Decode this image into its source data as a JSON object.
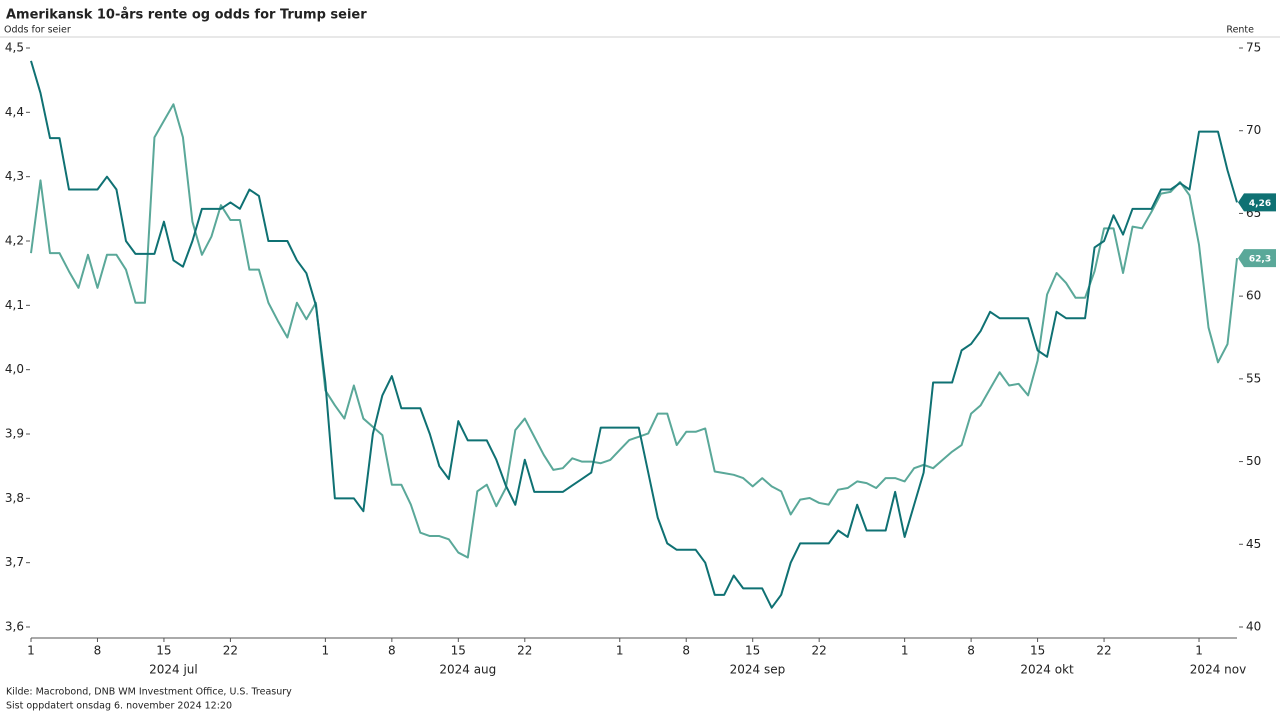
{
  "chart_data": {
    "type": "line",
    "title": "Amerikansk 10-års rente og odds for Trump seier",
    "ylabel": "Odds for seier",
    "y2label": "Rente",
    "source": "Kilde: Macrobond, DNB WM Investment Office, U.S. Treasury",
    "updated": "Sist oppdatert onsdag 6. november 2024 12:20",
    "xlim": [
      "2024-07-01",
      "2024-11-05"
    ],
    "ylim": [
      3.6,
      4.5
    ],
    "yticks": [
      {
        "value": 3.6,
        "label": "3,6"
      },
      {
        "value": 3.7,
        "label": "3,7"
      },
      {
        "value": 3.8,
        "label": "3,8"
      },
      {
        "value": 3.9,
        "label": "3,9"
      },
      {
        "value": 4.0,
        "label": "4,0"
      },
      {
        "value": 4.1,
        "label": "4,1"
      },
      {
        "value": 4.2,
        "label": "4,2"
      },
      {
        "value": 4.3,
        "label": "4,3"
      },
      {
        "value": 4.4,
        "label": "4,4"
      },
      {
        "value": 4.5,
        "label": "4,5"
      }
    ],
    "y2lim": [
      40,
      75
    ],
    "y2ticks": [
      40,
      45,
      50,
      55,
      60,
      65,
      70,
      75
    ],
    "xticks": [
      {
        "value": "2024-07-01",
        "label": "1"
      },
      {
        "value": "2024-07-08",
        "label": "8"
      },
      {
        "value": "2024-07-15",
        "label": "15"
      },
      {
        "value": "2024-07-22",
        "label": "22"
      },
      {
        "value": "2024-08-01",
        "label": "1"
      },
      {
        "value": "2024-08-08",
        "label": "8"
      },
      {
        "value": "2024-08-15",
        "label": "15"
      },
      {
        "value": "2024-08-22",
        "label": "22"
      },
      {
        "value": "2024-09-01",
        "label": "1"
      },
      {
        "value": "2024-09-08",
        "label": "8"
      },
      {
        "value": "2024-09-15",
        "label": "15"
      },
      {
        "value": "2024-09-22",
        "label": "22"
      },
      {
        "value": "2024-10-01",
        "label": "1"
      },
      {
        "value": "2024-10-08",
        "label": "8"
      },
      {
        "value": "2024-10-15",
        "label": "15"
      },
      {
        "value": "2024-10-22",
        "label": "22"
      },
      {
        "value": "2024-11-01",
        "label": "1"
      }
    ],
    "month_labels": [
      {
        "value": "2024-07",
        "label": "2024 jul"
      },
      {
        "value": "2024-08",
        "label": "2024 aug"
      },
      {
        "value": "2024-09",
        "label": "2024 sep"
      },
      {
        "value": "2024-10",
        "label": "2024 okt"
      },
      {
        "value": "2024-11",
        "label": "2024 nov"
      }
    ],
    "x": [
      "2024-07-01",
      "2024-07-02",
      "2024-07-03",
      "2024-07-04",
      "2024-07-05",
      "2024-07-06",
      "2024-07-07",
      "2024-07-08",
      "2024-07-09",
      "2024-07-10",
      "2024-07-11",
      "2024-07-12",
      "2024-07-13",
      "2024-07-14",
      "2024-07-15",
      "2024-07-16",
      "2024-07-17",
      "2024-07-18",
      "2024-07-19",
      "2024-07-20",
      "2024-07-21",
      "2024-07-22",
      "2024-07-23",
      "2024-07-24",
      "2024-07-25",
      "2024-07-26",
      "2024-07-27",
      "2024-07-28",
      "2024-07-29",
      "2024-07-30",
      "2024-07-31",
      "2024-08-01",
      "2024-08-02",
      "2024-08-03",
      "2024-08-04",
      "2024-08-05",
      "2024-08-06",
      "2024-08-07",
      "2024-08-08",
      "2024-08-09",
      "2024-08-10",
      "2024-08-11",
      "2024-08-12",
      "2024-08-13",
      "2024-08-14",
      "2024-08-15",
      "2024-08-16",
      "2024-08-17",
      "2024-08-18",
      "2024-08-19",
      "2024-08-20",
      "2024-08-21",
      "2024-08-22",
      "2024-08-23",
      "2024-08-24",
      "2024-08-25",
      "2024-08-26",
      "2024-08-27",
      "2024-08-28",
      "2024-08-29",
      "2024-08-30",
      "2024-08-31",
      "2024-09-01",
      "2024-09-02",
      "2024-09-03",
      "2024-09-04",
      "2024-09-05",
      "2024-09-06",
      "2024-09-07",
      "2024-09-08",
      "2024-09-09",
      "2024-09-10",
      "2024-09-11",
      "2024-09-12",
      "2024-09-13",
      "2024-09-14",
      "2024-09-15",
      "2024-09-16",
      "2024-09-17",
      "2024-09-18",
      "2024-09-19",
      "2024-09-20",
      "2024-09-21",
      "2024-09-22",
      "2024-09-23",
      "2024-09-24",
      "2024-09-25",
      "2024-09-26",
      "2024-09-27",
      "2024-09-28",
      "2024-09-29",
      "2024-09-30",
      "2024-10-01",
      "2024-10-02",
      "2024-10-03",
      "2024-10-04",
      "2024-10-05",
      "2024-10-06",
      "2024-10-07",
      "2024-10-08",
      "2024-10-09",
      "2024-10-10",
      "2024-10-11",
      "2024-10-12",
      "2024-10-13",
      "2024-10-14",
      "2024-10-15",
      "2024-10-16",
      "2024-10-17",
      "2024-10-18",
      "2024-10-19",
      "2024-10-20",
      "2024-10-21",
      "2024-10-22",
      "2024-10-23",
      "2024-10-24",
      "2024-10-25",
      "2024-10-26",
      "2024-10-27",
      "2024-10-28",
      "2024-10-29",
      "2024-10-30",
      "2024-10-31",
      "2024-11-01",
      "2024-11-02",
      "2024-11-03",
      "2024-11-04",
      "2024-11-05"
    ],
    "series": [
      {
        "color": "#5aa899",
        "axis": "y2",
        "end_label": "62,3",
        "values": [
          62.6,
          67.0,
          62.6,
          62.6,
          61.5,
          60.5,
          62.5,
          60.5,
          62.5,
          62.5,
          61.6,
          59.6,
          59.6,
          69.6,
          70.6,
          71.6,
          69.6,
          64.5,
          62.5,
          63.6,
          65.5,
          64.6,
          64.6,
          61.6,
          61.6,
          59.6,
          58.5,
          57.5,
          59.6,
          58.6,
          59.6,
          54.3,
          53.4,
          52.6,
          54.6,
          52.6,
          52.1,
          51.6,
          48.6,
          48.6,
          47.4,
          45.7,
          45.5,
          45.5,
          45.3,
          44.5,
          44.2,
          48.2,
          48.6,
          47.3,
          48.4,
          51.9,
          52.6,
          51.5,
          50.4,
          49.5,
          49.6,
          50.2,
          50.0,
          50.0,
          49.9,
          50.1,
          50.7,
          51.3,
          51.5,
          51.7,
          52.9,
          52.9,
          51.0,
          51.8,
          51.8,
          52.0,
          49.4,
          49.3,
          49.2,
          49.0,
          48.5,
          49.0,
          48.5,
          48.2,
          46.8,
          47.7,
          47.8,
          47.5,
          47.4,
          48.3,
          48.4,
          48.8,
          48.7,
          48.4,
          49.0,
          49.0,
          48.8,
          49.6,
          49.8,
          49.6,
          50.1,
          50.6,
          51.0,
          52.9,
          53.4,
          54.4,
          55.4,
          54.6,
          54.7,
          54.0,
          56.1,
          60.1,
          61.4,
          60.8,
          59.9,
          59.9,
          61.5,
          64.1,
          64.1,
          61.4,
          64.2,
          64.1,
          65.1,
          66.2,
          66.3,
          66.9,
          66.1,
          63.1,
          58.1,
          56.0,
          57.1,
          62.3
        ]
      },
      {
        "color": "#0f7173",
        "axis": "y",
        "end_label": "4,26",
        "values": [
          4.48,
          4.43,
          4.36,
          4.36,
          4.28,
          4.28,
          4.28,
          4.28,
          4.3,
          4.28,
          4.2,
          4.18,
          4.18,
          4.18,
          4.23,
          4.17,
          4.16,
          4.2,
          4.25,
          4.25,
          4.25,
          4.26,
          4.25,
          4.28,
          4.27,
          4.2,
          4.2,
          4.2,
          4.17,
          4.15,
          4.1,
          3.98,
          3.8,
          3.8,
          3.8,
          3.78,
          3.9,
          3.96,
          3.99,
          3.94,
          3.94,
          3.94,
          3.9,
          3.85,
          3.83,
          3.92,
          3.89,
          3.89,
          3.89,
          3.86,
          3.82,
          3.79,
          3.86,
          3.81,
          3.81,
          3.81,
          3.81,
          3.82,
          3.83,
          3.84,
          3.91,
          3.91,
          3.91,
          3.91,
          3.91,
          3.84,
          3.77,
          3.73,
          3.72,
          3.72,
          3.72,
          3.7,
          3.65,
          3.65,
          3.68,
          3.66,
          3.66,
          3.66,
          3.63,
          3.65,
          3.7,
          3.73,
          3.73,
          3.73,
          3.73,
          3.75,
          3.74,
          3.79,
          3.75,
          3.75,
          3.75,
          3.81,
          3.74,
          3.79,
          3.84,
          3.98,
          3.98,
          3.98,
          4.03,
          4.04,
          4.06,
          4.09,
          4.08,
          4.08,
          4.08,
          4.08,
          4.03,
          4.02,
          4.09,
          4.08,
          4.08,
          4.08,
          4.19,
          4.2,
          4.24,
          4.21,
          4.25,
          4.25,
          4.25,
          4.28,
          4.28,
          4.29,
          4.28,
          4.37,
          4.37,
          4.37,
          4.31,
          4.26
        ]
      }
    ]
  }
}
